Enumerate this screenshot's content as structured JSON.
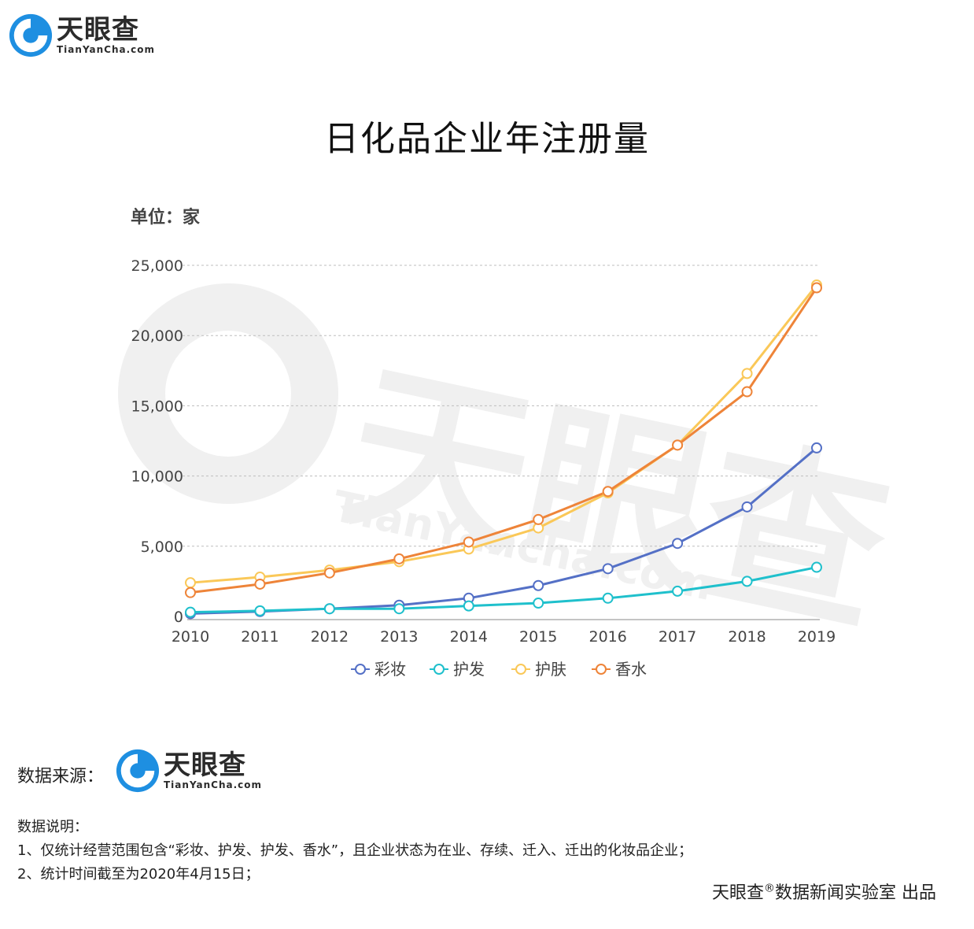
{
  "brand": {
    "name_cn": "天眼查",
    "name_en": "TianYanCha.com",
    "blue": "#1e8fe1"
  },
  "watermark": {
    "text_cn": "天眼查",
    "text_en": "TianYancha.com"
  },
  "chart_data": {
    "type": "line",
    "title": "日化品企业年注册量",
    "unit": "单位：家",
    "x": [
      "2010",
      "2011",
      "2012",
      "2013",
      "2014",
      "2015",
      "2016",
      "2017",
      "2018",
      "2019"
    ],
    "ylim": [
      0,
      25000
    ],
    "yticks": [
      0,
      5000,
      10000,
      15000,
      20000,
      25000
    ],
    "ytick_labels": [
      "0",
      "5,000",
      "10,000",
      "15,000",
      "20,000",
      "25,000"
    ],
    "grid": true,
    "legend_position": "bottom-center",
    "series": [
      {
        "name": "彩妆",
        "color": "#5470c6",
        "values": [
          200,
          350,
          550,
          800,
          1300,
          2200,
          3400,
          5200,
          7800,
          12000
        ]
      },
      {
        "name": "护发",
        "color": "#1fc0cc",
        "values": [
          300,
          400,
          550,
          550,
          750,
          950,
          1300,
          1800,
          2500,
          3500
        ]
      },
      {
        "name": "护肤",
        "color": "#fac858",
        "values": [
          2400,
          2800,
          3300,
          3900,
          4800,
          6300,
          8800,
          12200,
          17300,
          23600
        ]
      },
      {
        "name": "香水",
        "color": "#ee8439",
        "values": [
          1700,
          2300,
          3100,
          4100,
          5300,
          6900,
          8900,
          12200,
          16000,
          23400
        ]
      }
    ]
  },
  "footer": {
    "source_label": "数据来源：",
    "notes_title": "数据说明：",
    "note1": "1、仅统计经营范围包含“彩妆、护发、护发、香水”，且企业状态为在业、存续、迁入、迁出的化妆品企业；",
    "note2": "2、统计时间截至为2020年4月15日；",
    "credit_prefix": "天眼查",
    "credit_mark": "®",
    "credit_suffix": "数据新闻实验室 出品"
  }
}
